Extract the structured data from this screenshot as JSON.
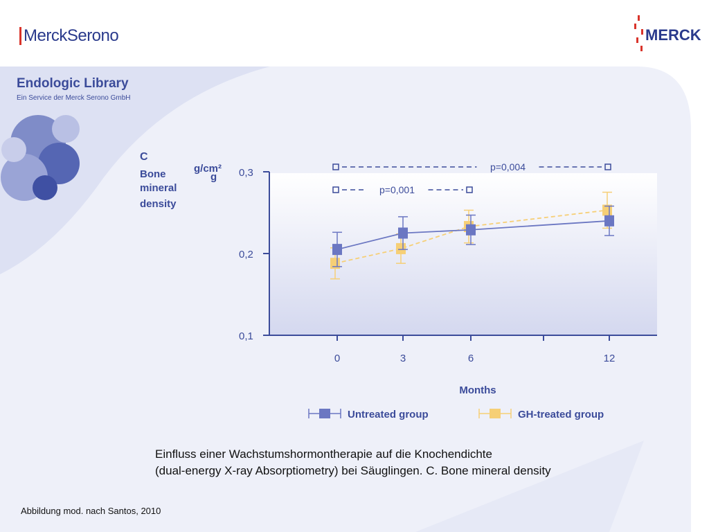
{
  "brand": {
    "left_logo": "MerckSerono",
    "right_logo": "MERCK"
  },
  "library": {
    "title": "Endologic Library",
    "subtitle": "Ein Service der Merck Serono GmbH"
  },
  "chart_data": {
    "type": "line",
    "panel_letter": "C",
    "ylabel_lines": [
      "Bone",
      "mineral",
      "density"
    ],
    "yunit": "g/cm²",
    "yunit_extra": "g",
    "xlabel": "Months",
    "x": [
      0,
      3,
      6,
      12
    ],
    "xticks": [
      "0",
      "3",
      "6",
      "12"
    ],
    "ylim": [
      0.1,
      0.3
    ],
    "yticks": [
      "0,1",
      "0,2",
      "0,3"
    ],
    "series": [
      {
        "name": "Untreated group",
        "color": "#6b77c2",
        "values": [
          0.205,
          0.225,
          0.229,
          0.24
        ],
        "err": [
          0.021,
          0.02,
          0.018,
          0.018
        ]
      },
      {
        "name": "GH-treated group",
        "color": "#f6cf76",
        "values": [
          0.188,
          0.206,
          0.233,
          0.253
        ],
        "err": [
          0.019,
          0.018,
          0.02,
          0.022
        ]
      }
    ],
    "annotations": [
      {
        "label": "p=0,004",
        "from": 0,
        "to": 12
      },
      {
        "label": "p=0,001",
        "from": 0,
        "to": 6
      }
    ]
  },
  "caption": {
    "line1": "Einfluss einer Wachstumshormontherapie auf die Knochendichte",
    "line2": "(dual-energy X-ray Absorptiometry) bei Säuglingen. C. Bone mineral density"
  },
  "source": "Abbildung mod. nach Santos, 2010"
}
